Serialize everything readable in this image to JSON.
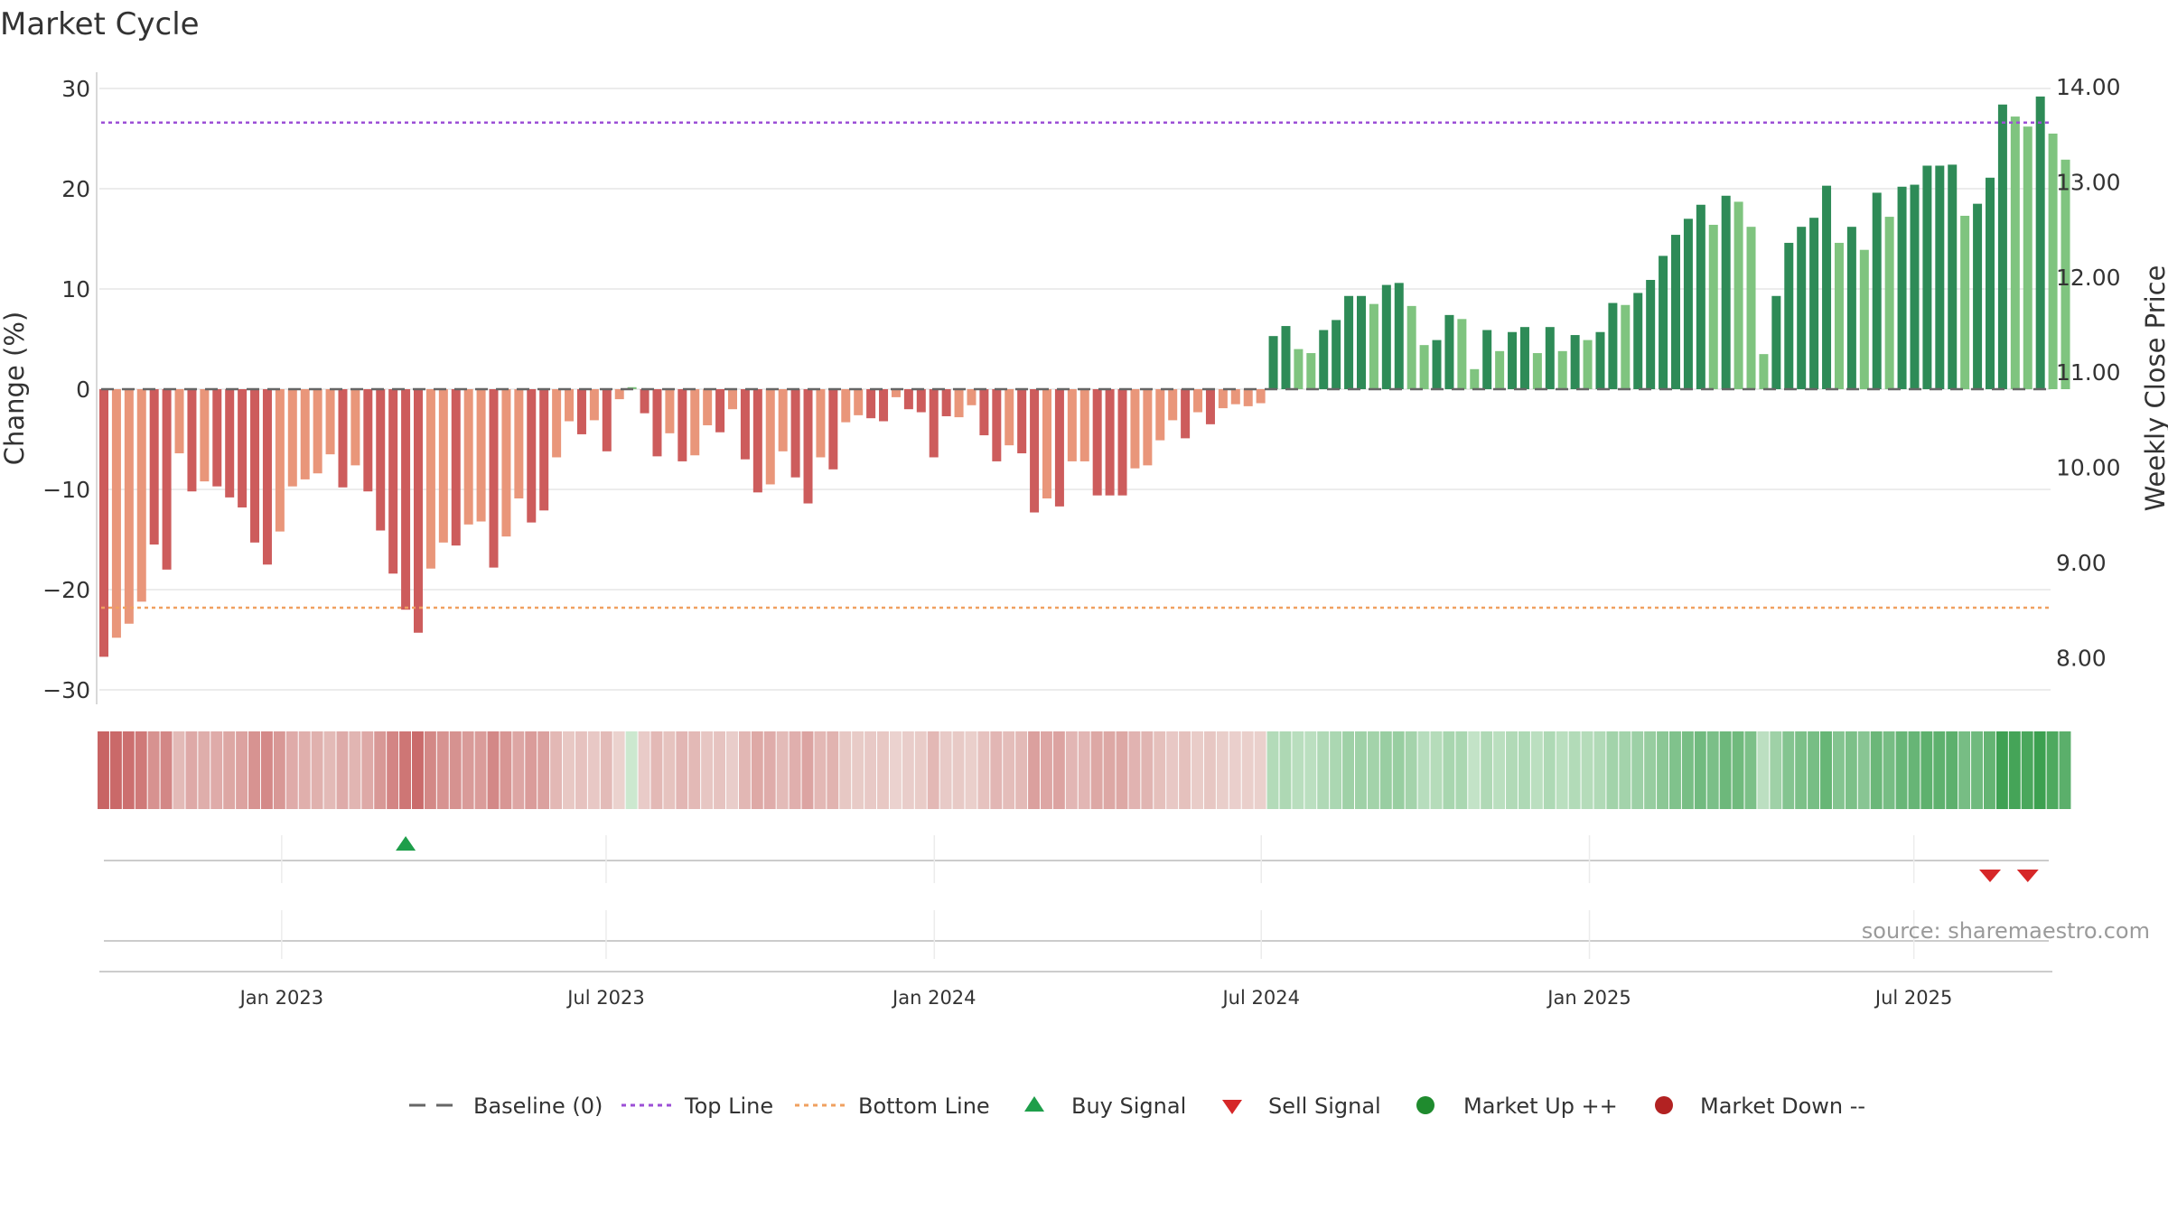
{
  "chart_data": {
    "type": "bar",
    "title": "Market Cycle",
    "ylabel_left": "Change (%)",
    "ylabel_right": "Weekly Close Price",
    "ylim_left": [
      -30,
      30
    ],
    "yticks_left": [
      30,
      20,
      10,
      0,
      -10,
      -20,
      -30
    ],
    "ytick_labels_left": [
      "30",
      "20",
      "10",
      "0",
      "−10",
      "−20",
      "−30"
    ],
    "ytick_labels_right": [
      "14.00",
      "13.00",
      "12.00",
      "11.00",
      "10.00",
      "9.00",
      "8.00"
    ],
    "ytick_values_right": [
      14,
      13,
      12,
      11,
      10,
      9,
      8
    ],
    "x_labels": [
      "Jan 2023",
      "Jul 2023",
      "Jan 2024",
      "Jul 2024",
      "Jan 2025",
      "Jul 2025"
    ],
    "x_label_weeks": [
      14.5,
      40.3,
      66.4,
      92.4,
      118.5,
      144.3
    ],
    "top_line": 26.6,
    "bottom_line": -21.8,
    "baseline": 0,
    "grid": true,
    "legend_position": "bottom-center",
    "source": "source: sharemaestro.com",
    "colors": {
      "neg_strong": "#cd5c5c",
      "neg_light": "#e9967a",
      "pos_strong": "#2e8b57",
      "pos_light": "#7fc47f",
      "top_line": "#9c4fd6",
      "bottom_line": "#f0a060",
      "buy": "#1e9e4a",
      "sell": "#d62728",
      "market_up": "#1f8b2e",
      "market_down": "#b22222"
    },
    "values": [
      -26.7,
      -24.8,
      -23.4,
      -21.2,
      -15.5,
      -18.0,
      -6.4,
      -10.2,
      -9.2,
      -9.7,
      -10.8,
      -11.8,
      -15.3,
      -17.5,
      -14.2,
      -9.7,
      -9.0,
      -8.4,
      -6.5,
      -9.8,
      -7.6,
      -10.2,
      -14.1,
      -18.4,
      -22.0,
      -24.3,
      -17.9,
      -15.3,
      -15.6,
      -13.5,
      -13.2,
      -17.8,
      -14.7,
      -10.9,
      -13.3,
      -12.1,
      -6.8,
      -3.2,
      -4.5,
      -3.1,
      -6.2,
      -1.0,
      0.2,
      -2.4,
      -6.7,
      -4.4,
      -7.2,
      -6.6,
      -3.6,
      -4.3,
      -2.0,
      -7.0,
      -10.3,
      -9.5,
      -6.2,
      -8.8,
      -11.4,
      -6.8,
      -8.0,
      -3.3,
      -2.6,
      -2.9,
      -3.2,
      -0.8,
      -2.0,
      -2.3,
      -6.8,
      -2.7,
      -2.8,
      -1.6,
      -4.6,
      -7.2,
      -5.6,
      -6.4,
      -12.3,
      -10.9,
      -11.7,
      -7.2,
      -7.2,
      -10.6,
      -10.6,
      -10.6,
      -7.9,
      -7.6,
      -5.1,
      -3.1,
      -4.9,
      -2.3,
      -3.5,
      -1.9,
      -1.5,
      -1.7,
      -1.4,
      5.3,
      6.3,
      4.0,
      3.6,
      5.9,
      6.9,
      9.3,
      9.3,
      8.5,
      10.4,
      10.6,
      8.3,
      4.4,
      4.9,
      7.4,
      7.0,
      2.0,
      5.9,
      3.8,
      5.7,
      6.2,
      3.6,
      6.2,
      3.8,
      5.4,
      4.9,
      5.7,
      8.6,
      8.4,
      9.6,
      10.9,
      13.3,
      15.4,
      17.0,
      18.4,
      16.4,
      19.3,
      18.7,
      16.2,
      3.5,
      9.3,
      14.6,
      16.2,
      17.1,
      20.3,
      14.6,
      16.2,
      13.9,
      19.6,
      17.2,
      20.2,
      20.4,
      22.3,
      22.3,
      22.4,
      17.3,
      18.5,
      21.1,
      28.4,
      27.2,
      26.2,
      29.2,
      25.5,
      22.9
    ],
    "shade": [
      1,
      0,
      0,
      0,
      1,
      1,
      0,
      1,
      0,
      1,
      1,
      1,
      1,
      1,
      0,
      0,
      0,
      0,
      0,
      1,
      0,
      1,
      1,
      1,
      1,
      1,
      0,
      0,
      1,
      0,
      0,
      1,
      0,
      0,
      1,
      1,
      0,
      0,
      1,
      0,
      1,
      0,
      0,
      1,
      1,
      0,
      1,
      0,
      0,
      1,
      0,
      1,
      1,
      0,
      0,
      1,
      1,
      0,
      1,
      0,
      0,
      1,
      1,
      0,
      1,
      1,
      1,
      1,
      0,
      0,
      1,
      1,
      0,
      1,
      1,
      0,
      1,
      0,
      0,
      1,
      1,
      1,
      0,
      0,
      0,
      0,
      1,
      0,
      1,
      0,
      0,
      0,
      0,
      1,
      1,
      0,
      0,
      1,
      1,
      1,
      1,
      0,
      1,
      1,
      0,
      0,
      1,
      1,
      0,
      0,
      1,
      0,
      1,
      1,
      0,
      1,
      0,
      1,
      0,
      1,
      1,
      0,
      1,
      1,
      1,
      1,
      1,
      1,
      0,
      1,
      0,
      0,
      0,
      1,
      1,
      1,
      1,
      1,
      0,
      1,
      0,
      1,
      0,
      1,
      1,
      1,
      1,
      1,
      0,
      1,
      1,
      1,
      0,
      0,
      1,
      0,
      0
    ],
    "buy_signals": [
      24
    ],
    "sell_signals": [
      150,
      153
    ],
    "legend": [
      "Baseline (0)",
      "Top Line",
      "Bottom Line",
      "Buy Signal",
      "Sell Signal",
      "Market Up ++",
      "Market Down --"
    ]
  }
}
